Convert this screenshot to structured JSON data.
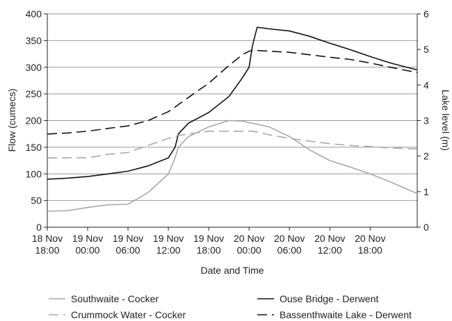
{
  "chart_data": {
    "type": "line",
    "x_label": "Date and Time",
    "y_label": "Flow (cumecs)",
    "y2_label": "Lake level (m)",
    "x": [
      0,
      3,
      6,
      9,
      12,
      15,
      18,
      19,
      19.5,
      21,
      24,
      27,
      29,
      30,
      30.5,
      31.2,
      33,
      36,
      39,
      42,
      45,
      48,
      51,
      55
    ],
    "xlim": [
      0,
      55
    ],
    "xticks": [
      {
        "value": 0,
        "label": "18 Nov 18:00"
      },
      {
        "value": 6,
        "label": "19 Nov 00:00"
      },
      {
        "value": 12,
        "label": "19 Nov 06:00"
      },
      {
        "value": 18,
        "label": "19 Nov 12:00"
      },
      {
        "value": 24,
        "label": "19 Nov 18:00"
      },
      {
        "value": 30,
        "label": "20 Nov 00:00"
      },
      {
        "value": 36,
        "label": "20 Nov 06:00"
      },
      {
        "value": 42,
        "label": "20 Nov 12:00"
      },
      {
        "value": 48,
        "label": "20 Nov 18:00"
      }
    ],
    "ylim": [
      0,
      400
    ],
    "yticks": [
      0,
      50,
      100,
      150,
      200,
      250,
      300,
      350,
      400
    ],
    "y2lim": [
      0,
      6
    ],
    "y2ticks": [
      0,
      1,
      2,
      3,
      4,
      5,
      6
    ],
    "grid": true,
    "series": [
      {
        "name": "Southwaite - Cocker",
        "color": "#a8a8a8",
        "dash": false,
        "values": [
          30,
          31,
          37,
          42,
          43,
          65,
          100,
          130,
          150,
          170,
          188,
          200,
          199,
          196,
          195,
          193,
          188,
          170,
          145,
          125,
          113,
          100,
          85,
          63
        ]
      },
      {
        "name": "Ouse Bridge - Derwent",
        "color": "#111111",
        "dash": false,
        "values": [
          90,
          92,
          95,
          100,
          105,
          115,
          130,
          150,
          175,
          195,
          215,
          245,
          280,
          300,
          340,
          375,
          372,
          368,
          358,
          345,
          333,
          320,
          308,
          295
        ]
      },
      {
        "name": "Crummock Water - Cocker",
        "color": "#a8a8a8",
        "dash": true,
        "axis": "y2",
        "values": [
          1.95,
          1.95,
          1.95,
          2.05,
          2.1,
          2.3,
          2.5,
          2.55,
          2.58,
          2.62,
          2.7,
          2.7,
          2.7,
          2.7,
          2.7,
          2.68,
          2.6,
          2.5,
          2.42,
          2.35,
          2.3,
          2.27,
          2.23,
          2.2
        ]
      },
      {
        "name": "Bassenthwaite Lake - Derwent",
        "color": "#111111",
        "dash": true,
        "axis": "y2",
        "values": [
          2.62,
          2.65,
          2.7,
          2.78,
          2.85,
          3.0,
          3.25,
          3.38,
          3.45,
          3.65,
          4.05,
          4.55,
          4.85,
          4.95,
          4.97,
          4.97,
          4.95,
          4.92,
          4.85,
          4.78,
          4.72,
          4.62,
          4.5,
          4.35
        ]
      }
    ]
  }
}
